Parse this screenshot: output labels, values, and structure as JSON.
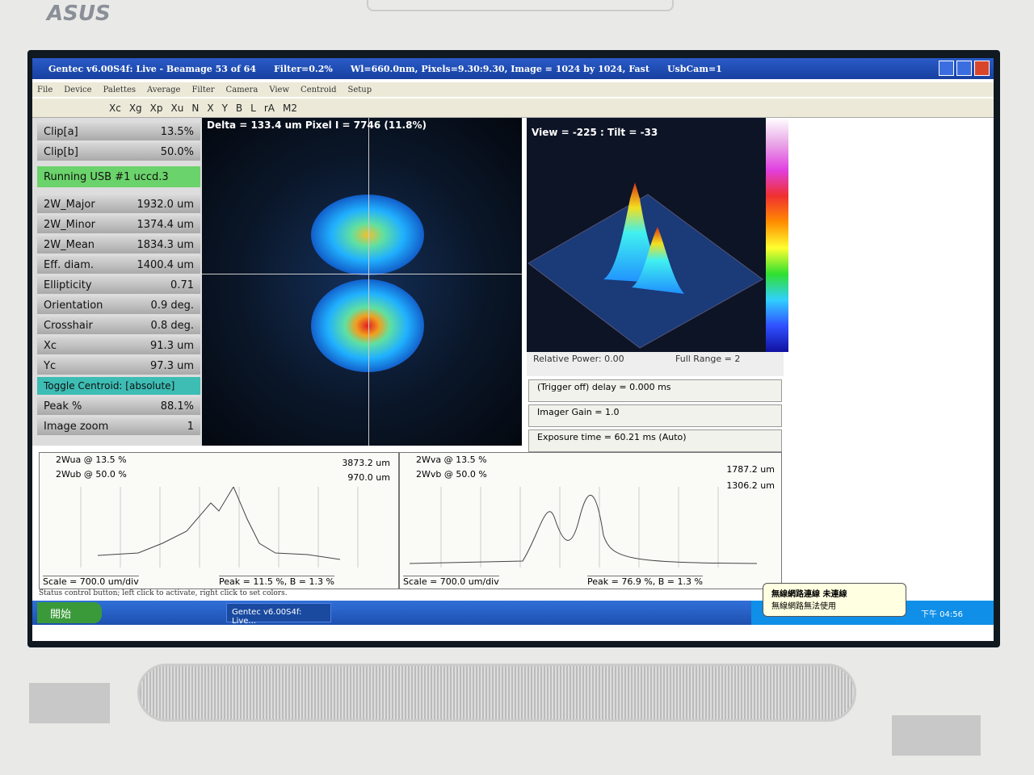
{
  "logo": "ASUS",
  "window": {
    "title": [
      "Gentec v6.00S4f: Live - Beamage 53 of 64",
      "Filter=0.2%",
      "Wl=660.0nm, Pixels=9.30:9.30, Image = 1024 by 1024, Fast",
      "UsbCam=1"
    ],
    "menu": [
      "File",
      "Device",
      "Palettes",
      "Average",
      "Filter",
      "Camera",
      "View",
      "Centroid",
      "Setup"
    ],
    "toolbar": [
      "Xc",
      "Xg",
      "Xp",
      "Xu",
      "N",
      "X",
      "Y",
      "B",
      "L",
      "rA",
      "M2"
    ]
  },
  "left_panel": {
    "clip": [
      [
        "Clip[a]",
        "13.5%"
      ],
      [
        "Clip[b]",
        "50.0%"
      ]
    ],
    "status": "Running USB #1 uccd.3",
    "results": [
      [
        "2W_Major",
        "1932.0 um"
      ],
      [
        "2W_Minor",
        "1374.4 um"
      ],
      [
        "2W_Mean",
        "1834.3 um"
      ],
      [
        "Eff. diam.",
        "1400.4 um"
      ],
      [
        "Ellipticity",
        "0.71"
      ],
      [
        "Orientation",
        "0.9 deg."
      ],
      [
        "Crosshair",
        "0.8 deg."
      ],
      [
        "Xc",
        "91.3 um"
      ],
      [
        "Yc",
        "97.3 um"
      ]
    ],
    "toggle": "Toggle Centroid:  [absolute]",
    "extra": [
      [
        "Peak %",
        "88.1%"
      ],
      [
        "Image zoom",
        "1"
      ]
    ]
  },
  "image_view": {
    "overlay": "Delta = 133.4 um Pixel I = 7746 (11.8%)"
  },
  "view_3d": {
    "overlay": "View = -225 : Tilt = -33",
    "relative_power": "Relative Power: 0.00",
    "full_range": "Full Range = 2"
  },
  "controls": [
    "(Trigger off) delay = 0.000 ms",
    "Imager Gain = 1.0",
    "Exposure time = 60.21 ms (Auto)"
  ],
  "profiles": [
    {
      "a_label": "2Wua @ 13.5 %",
      "a_value": "3873.2 um",
      "b_label": "2Wub @ 50.0 %",
      "b_value": "970.0 um",
      "scale": "Scale = 700.0 um/div",
      "peak": "Peak = 11.5 %,  B = 1.3 %"
    },
    {
      "a_label": "2Wva @ 13.5 %",
      "a_value": "1787.2 um",
      "b_label": "2Wvb @ 50.0 %",
      "b_value": "1306.2 um",
      "scale": "Scale = 700.0 um/div",
      "peak": "Peak = 76.9 %,  B = 1.3 %"
    }
  ],
  "status_bar": "Status control button; left click to activate, right click to set colors.",
  "taskbar": {
    "start": "開始",
    "task": "Gentec v6.00S4f: Live...",
    "clock": "下午 04:56"
  },
  "notification": {
    "title": "無線網路連線 未連線",
    "body": "無線網路無法使用"
  }
}
